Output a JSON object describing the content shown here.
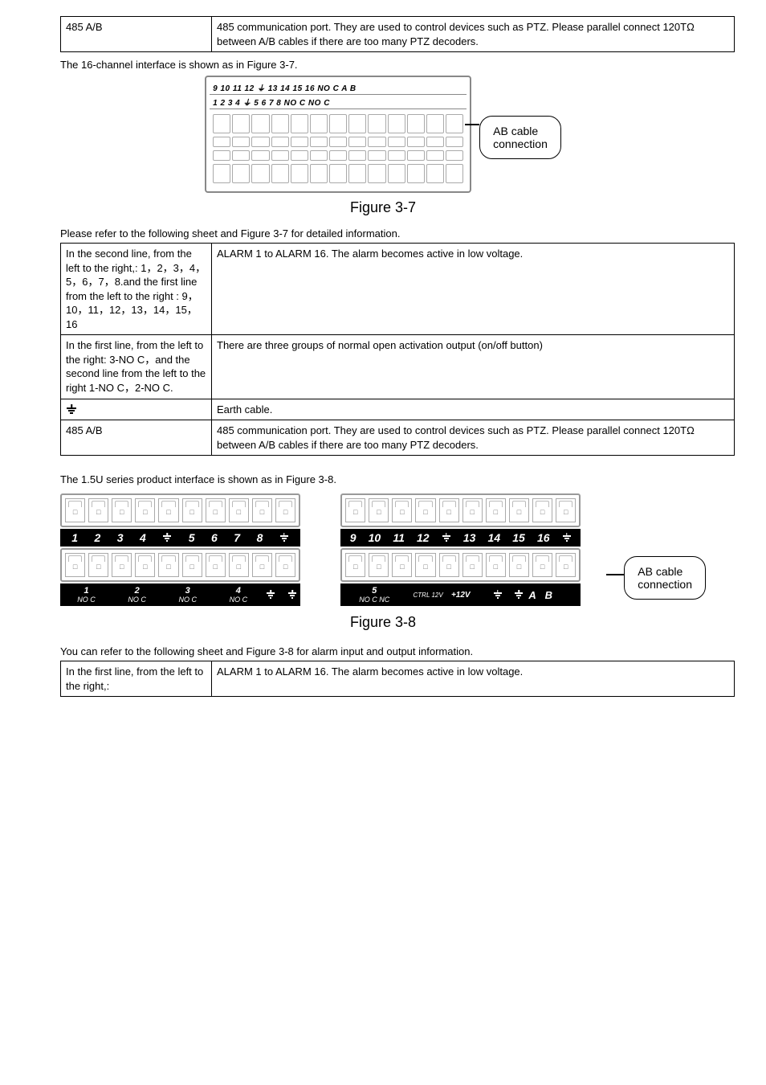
{
  "top_table": {
    "label": "485 A/B",
    "desc": "485 communication port. They are used to control devices such as PTZ. Please parallel connect 120TΩ between A/B cables if there are too many PTZ decoders."
  },
  "para1": "The 16-channel interface is shown as in Figure 3-7.",
  "fig37": {
    "row1": "9  10 11 12  ⏚  13 14 15 16   NO  C    A   B",
    "row2": "1   2   3   4   ⏚   5   6   7   8    NO  C    NO  C",
    "callout_l1": "AB cable",
    "callout_l2": "connection",
    "caption": "Figure 3-7"
  },
  "para2": "Please refer to the following sheet and Figure 3-7 for detailed information.",
  "mid_table": {
    "r1_label": "In the second  line, from the left to the right,: 1，2，3，4，5，6，7，8.and the first line from the left to the right : 9，10，11，12，13，14，15，16",
    "r1_desc": "ALARM 1 to ALARM 16. The alarm becomes active in low voltage.",
    "r2_label": "In the first  line, from the left to the right: 3-NO C，and the second line from the left to the right  1-NO C，2-NO C.",
    "r2_desc": "There are three groups of normal open activation output (on/off button)",
    "r3_desc": "Earth cable.",
    "r4_label": "485 A/B",
    "r4_desc": "485 communication port. They are used to control devices such as PTZ. Please parallel connect 120TΩ between A/B cables if there are too many PTZ decoders."
  },
  "para3": "The 1.5U series product interface is shown as in Figure 3-8.",
  "fig38": {
    "left_bar": [
      "1",
      "2",
      "3",
      "4",
      "⏚",
      "5",
      "6",
      "7",
      "8",
      "⏚"
    ],
    "left_bottom_pairs": [
      {
        "num": "1",
        "sub": "NO   C"
      },
      {
        "num": "2",
        "sub": "NO   C"
      },
      {
        "num": "3",
        "sub": "NO   C"
      },
      {
        "num": "4",
        "sub": "NO   C"
      }
    ],
    "right_bar": [
      "9",
      "10",
      "11",
      "12",
      "⏚",
      "13",
      "14",
      "15",
      "16",
      "⏚"
    ],
    "right_bottom": {
      "num": "5",
      "sub": "NO   C   NC",
      "ctrl": "CTRL 12V",
      "v12": "+12V",
      "tail": "⏚   ⏚    A    B"
    },
    "callout_l1": "AB cable",
    "callout_l2": "connection",
    "caption": "Figure 3-8"
  },
  "para4": "You can refer to the following sheet and Figure 3-8 for alarm input and output information.",
  "bottom_table": {
    "label": "In the first line, from the left to the right,:",
    "desc": "ALARM 1 to ALARM 16. The alarm becomes active in low voltage."
  }
}
